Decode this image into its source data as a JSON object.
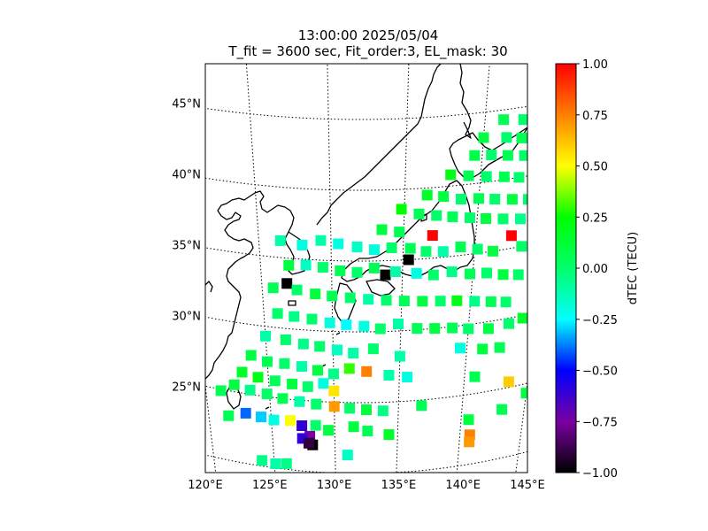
{
  "chart_data": {
    "type": "heatmap",
    "title": "13:00:00 2025/05/04",
    "subtitle": "T_fit = 3600 sec, Fit_order:3, EL_mask: 30",
    "xlabel": "",
    "ylabel": "",
    "lon_ticks": [
      {
        "value": 120,
        "label": "120°E"
      },
      {
        "value": 125,
        "label": "125°E"
      },
      {
        "value": 130,
        "label": "130°E"
      },
      {
        "value": 135,
        "label": "135°E"
      },
      {
        "value": 140,
        "label": "140°E"
      },
      {
        "value": 145,
        "label": "145°E"
      }
    ],
    "lat_ticks": [
      {
        "value": 25,
        "label": "25°N"
      },
      {
        "value": 30,
        "label": "30°N"
      },
      {
        "value": 35,
        "label": "35°N"
      },
      {
        "value": 40,
        "label": "40°N"
      },
      {
        "value": 45,
        "label": "45°N"
      }
    ],
    "lon_range": [
      120,
      145
    ],
    "lat_range": [
      20,
      49
    ],
    "grid": true,
    "colorbar": {
      "label": "dTEC (TECU)",
      "range": [
        -1.0,
        1.0
      ],
      "ticks": [
        -1.0,
        -0.75,
        -0.5,
        -0.25,
        0.0,
        0.25,
        0.5,
        0.75,
        1.0
      ],
      "tick_labels": [
        "−1.00",
        "−0.75",
        "−0.50",
        "−0.25",
        "0.00",
        "0.25",
        "0.50",
        "0.75",
        "1.00"
      ]
    },
    "colormap": [
      {
        "v": -1.0,
        "c": "#000000"
      },
      {
        "v": -0.75,
        "c": "#7a00a0"
      },
      {
        "v": -0.5,
        "c": "#0000ff"
      },
      {
        "v": -0.25,
        "c": "#00ffff"
      },
      {
        "v": 0.0,
        "c": "#00ff6a"
      },
      {
        "v": 0.25,
        "c": "#00ff00"
      },
      {
        "v": 0.5,
        "c": "#ffff00"
      },
      {
        "v": 0.75,
        "c": "#ff8000"
      },
      {
        "v": 1.0,
        "c": "#ff0000"
      }
    ],
    "points": [
      [
        141.2,
        44.3,
        0.05
      ],
      [
        142.5,
        44.1,
        0.0
      ],
      [
        143.5,
        43.9,
        0.02
      ],
      [
        144.2,
        43.5,
        -0.05
      ],
      [
        140.0,
        43.2,
        0.1
      ],
      [
        141.5,
        43.0,
        0.0
      ],
      [
        142.5,
        42.8,
        0.05
      ],
      [
        143.6,
        42.6,
        0.0
      ],
      [
        144.5,
        42.5,
        0.1
      ],
      [
        139.5,
        42.0,
        0.08
      ],
      [
        140.6,
        41.9,
        0.0
      ],
      [
        141.7,
        41.7,
        0.05
      ],
      [
        142.8,
        41.5,
        0.0
      ],
      [
        143.9,
        41.3,
        0.12
      ],
      [
        144.6,
        41.0,
        0.0
      ],
      [
        138.0,
        40.8,
        0.2
      ],
      [
        139.2,
        40.6,
        0.05
      ],
      [
        140.4,
        40.4,
        0.0
      ],
      [
        141.6,
        40.2,
        0.05
      ],
      [
        142.6,
        40.0,
        0.0
      ],
      [
        143.7,
        39.8,
        0.1
      ],
      [
        144.5,
        39.5,
        0.0
      ],
      [
        136.5,
        39.5,
        0.15
      ],
      [
        137.6,
        39.3,
        0.1
      ],
      [
        138.8,
        39.0,
        0.0
      ],
      [
        140.0,
        38.9,
        0.05
      ],
      [
        141.1,
        38.7,
        0.0
      ],
      [
        142.3,
        38.5,
        0.1
      ],
      [
        143.4,
        38.3,
        0.0
      ],
      [
        144.5,
        38.0,
        0.05
      ],
      [
        134.8,
        38.6,
        0.25
      ],
      [
        136.0,
        38.2,
        0.05
      ],
      [
        137.2,
        38.0,
        0.0
      ],
      [
        138.3,
        37.8,
        0.05
      ],
      [
        139.5,
        37.6,
        0.0
      ],
      [
        140.6,
        37.4,
        0.1
      ],
      [
        141.8,
        37.2,
        0.0
      ],
      [
        143.0,
        37.0,
        -0.05
      ],
      [
        144.0,
        36.8,
        0.0
      ],
      [
        133.5,
        37.2,
        0.1
      ],
      [
        134.7,
        37.0,
        0.05
      ],
      [
        137.0,
        36.6,
        1.0
      ],
      [
        142.5,
        35.9,
        1.0
      ],
      [
        126.5,
        36.2,
        -0.1
      ],
      [
        128.0,
        36.0,
        -0.2
      ],
      [
        129.3,
        36.4,
        -0.1
      ],
      [
        130.5,
        36.2,
        -0.2
      ],
      [
        131.8,
        36.0,
        -0.15
      ],
      [
        133.0,
        35.8,
        -0.2
      ],
      [
        134.2,
        35.9,
        0.0
      ],
      [
        135.5,
        35.8,
        0.05
      ],
      [
        136.6,
        35.5,
        0.0
      ],
      [
        137.8,
        35.4,
        -0.1
      ],
      [
        139.0,
        35.6,
        0.05
      ],
      [
        140.2,
        35.3,
        0.0
      ],
      [
        141.3,
        35.0,
        0.1
      ],
      [
        143.3,
        35.0,
        0.0
      ],
      [
        144.2,
        34.6,
        0.05
      ],
      [
        135.4,
        35.0,
        -1.0
      ],
      [
        133.8,
        34.0,
        -1.0
      ],
      [
        126.8,
        33.2,
        -1.0
      ],
      [
        127.0,
        34.5,
        0.1
      ],
      [
        128.2,
        34.6,
        -0.15
      ],
      [
        129.4,
        34.5,
        0.0
      ],
      [
        130.6,
        34.3,
        0.05
      ],
      [
        131.8,
        34.2,
        0.0
      ],
      [
        133.0,
        34.5,
        0.05
      ],
      [
        134.5,
        34.2,
        -0.1
      ],
      [
        136.0,
        34.0,
        -0.2
      ],
      [
        137.2,
        33.8,
        0.0
      ],
      [
        138.5,
        33.9,
        -0.05
      ],
      [
        139.8,
        33.6,
        0.05
      ],
      [
        141.0,
        33.5,
        0.0
      ],
      [
        142.2,
        33.2,
        0.1
      ],
      [
        143.3,
        33.0,
        0.0
      ],
      [
        125.8,
        32.8,
        0.05
      ],
      [
        127.5,
        32.8,
        0.0
      ],
      [
        128.8,
        32.6,
        0.1
      ],
      [
        130.0,
        32.5,
        0.05
      ],
      [
        131.3,
        32.4,
        0.0
      ],
      [
        132.6,
        32.3,
        -0.1
      ],
      [
        133.9,
        32.2,
        0.0
      ],
      [
        135.2,
        32.1,
        0.05
      ],
      [
        136.5,
        32.0,
        0.1
      ],
      [
        137.8,
        31.9,
        0.0
      ],
      [
        139.0,
        31.8,
        0.2
      ],
      [
        140.3,
        31.6,
        -0.05
      ],
      [
        141.5,
        31.4,
        0.05
      ],
      [
        142.6,
        31.2,
        0.0
      ],
      [
        126.0,
        31.0,
        0.0
      ],
      [
        127.2,
        30.9,
        -0.05
      ],
      [
        128.5,
        30.8,
        0.0
      ],
      [
        129.8,
        30.6,
        -0.2
      ],
      [
        131.0,
        30.5,
        -0.25
      ],
      [
        132.3,
        30.4,
        -0.2
      ],
      [
        133.5,
        30.2,
        0.0
      ],
      [
        134.8,
        30.5,
        -0.1
      ],
      [
        136.2,
        30.1,
        0.05
      ],
      [
        137.5,
        30.0,
        0.1
      ],
      [
        138.8,
        29.9,
        0.05
      ],
      [
        140.0,
        29.7,
        0.0
      ],
      [
        141.5,
        29.5,
        0.1
      ],
      [
        143.0,
        29.6,
        0.0
      ],
      [
        144.0,
        29.8,
        0.15
      ],
      [
        125.0,
        29.3,
        -0.1
      ],
      [
        126.5,
        29.2,
        0.0
      ],
      [
        127.8,
        29.0,
        -0.05
      ],
      [
        129.0,
        28.9,
        0.0
      ],
      [
        130.3,
        28.7,
        -0.15
      ],
      [
        131.5,
        28.5,
        -0.1
      ],
      [
        133.0,
        28.8,
        0.0
      ],
      [
        135.0,
        28.2,
        -0.1
      ],
      [
        139.5,
        28.4,
        -0.2
      ],
      [
        141.2,
        28.1,
        0.1
      ],
      [
        142.5,
        28.0,
        0.05
      ],
      [
        145.0,
        28.3,
        0.15
      ],
      [
        123.8,
        27.8,
        0.1
      ],
      [
        125.0,
        27.5,
        0.05
      ],
      [
        126.3,
        27.5,
        0.0
      ],
      [
        127.6,
        27.4,
        -0.1
      ],
      [
        128.8,
        27.2,
        0.1
      ],
      [
        130.0,
        27.0,
        -0.05
      ],
      [
        131.2,
        27.4,
        0.3
      ],
      [
        132.5,
        27.2,
        0.75
      ],
      [
        134.2,
        26.9,
        -0.1
      ],
      [
        135.6,
        26.7,
        -0.2
      ],
      [
        123.0,
        26.5,
        0.15
      ],
      [
        124.2,
        26.3,
        0.2
      ],
      [
        125.5,
        26.2,
        0.05
      ],
      [
        126.8,
        26.1,
        0.1
      ],
      [
        128.0,
        26.0,
        0.0
      ],
      [
        129.2,
        26.3,
        -0.2
      ],
      [
        130.0,
        25.8,
        0.55
      ],
      [
        140.8,
        26.2,
        0.05
      ],
      [
        122.3,
        25.5,
        0.1
      ],
      [
        123.5,
        25.3,
        -0.05
      ],
      [
        124.8,
        25.2,
        0.0
      ],
      [
        126.0,
        25.0,
        0.05
      ],
      [
        127.3,
        24.9,
        -0.1
      ],
      [
        128.6,
        24.8,
        0.0
      ],
      [
        130.0,
        24.7,
        0.7
      ],
      [
        131.2,
        24.6,
        0.0
      ],
      [
        132.5,
        24.5,
        0.1
      ],
      [
        133.8,
        24.4,
        -0.05
      ],
      [
        136.8,
        24.6,
        0.05
      ],
      [
        143.5,
        25.4,
        0.6
      ],
      [
        145.0,
        24.3,
        0.1
      ],
      [
        121.2,
        24.9,
        0.05
      ],
      [
        121.6,
        23.2,
        0.05
      ],
      [
        123.0,
        23.6,
        -0.4
      ],
      [
        124.2,
        23.5,
        -0.3
      ],
      [
        125.2,
        23.4,
        -0.2
      ],
      [
        126.5,
        23.5,
        0.5
      ],
      [
        127.4,
        23.2,
        -0.6
      ],
      [
        128.5,
        23.3,
        0.0
      ],
      [
        129.5,
        23.0,
        0.1
      ],
      [
        131.5,
        23.3,
        0.1
      ],
      [
        132.6,
        23.0,
        0.05
      ],
      [
        140.6,
        23.2,
        0.1
      ],
      [
        143.2,
        23.5,
        0.05
      ],
      [
        128.0,
        22.5,
        -0.75
      ],
      [
        127.4,
        22.3,
        -0.6
      ],
      [
        128.2,
        21.9,
        -1.0
      ],
      [
        127.9,
        22.0,
        -0.9
      ],
      [
        134.3,
        22.7,
        0.15
      ],
      [
        140.8,
        22.1,
        0.75
      ],
      [
        140.8,
        21.6,
        0.7
      ],
      [
        131.0,
        21.3,
        -0.15
      ],
      [
        124.0,
        20.4,
        -0.05
      ],
      [
        125.1,
        20.3,
        -0.1
      ],
      [
        126.0,
        20.4,
        -0.05
      ]
    ]
  }
}
